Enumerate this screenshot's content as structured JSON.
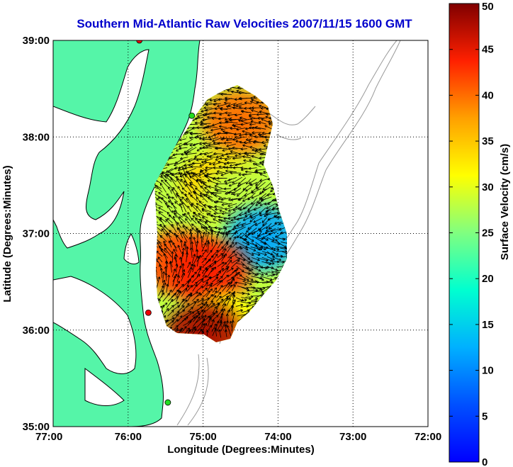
{
  "chart_data": {
    "type": "heatmap",
    "title": "Southern Mid-Atlantic Raw Velocities 2007/11/15 1600 GMT",
    "xlabel": "Longitude (Degrees:Minutes)",
    "ylabel": "Latitude (Degrees:Minutes)",
    "colorbar_label": "Surface Velocity (cm/s)",
    "xlim": [
      -77,
      -72
    ],
    "ylim": [
      35,
      39
    ],
    "x_ticks": [
      {
        "value": -77,
        "label": "77:00"
      },
      {
        "value": -76,
        "label": "76:00"
      },
      {
        "value": -75,
        "label": "75:00"
      },
      {
        "value": -74,
        "label": "74:00"
      },
      {
        "value": -73,
        "label": "73:00"
      },
      {
        "value": -72,
        "label": "72:00"
      }
    ],
    "y_ticks": [
      {
        "value": 35,
        "label": "35:00"
      },
      {
        "value": 36,
        "label": "36:00"
      },
      {
        "value": 37,
        "label": "37:00"
      },
      {
        "value": 38,
        "label": "38:00"
      },
      {
        "value": 39,
        "label": "39:00"
      }
    ],
    "colorbar_range": [
      0,
      50
    ],
    "colorbar_ticks": [
      "0",
      "5",
      "10",
      "15",
      "20",
      "25",
      "30",
      "35",
      "40",
      "45",
      "50"
    ],
    "grid": "dotted",
    "colors": {
      "land": "#55f5a8",
      "coast": "#000000",
      "bathymetry": "#999999",
      "station_red": "#ee0000",
      "station_green": "#22dd22",
      "arrow": "#000000"
    },
    "stations": [
      {
        "lon": -75.85,
        "lat": 39.0,
        "color": "red"
      },
      {
        "lon": -75.15,
        "lat": 38.22,
        "color": "green"
      },
      {
        "lon": -75.73,
        "lat": 36.18,
        "color": "red"
      },
      {
        "lon": -75.47,
        "lat": 35.25,
        "color": "green"
      }
    ],
    "regions": [
      {
        "lon": -74.5,
        "lat": 38.15,
        "speed": 40
      },
      {
        "lon": -74.8,
        "lat": 37.5,
        "speed": 34
      },
      {
        "lon": -74.5,
        "lat": 37.35,
        "speed": 28
      },
      {
        "lon": -74.2,
        "lat": 36.95,
        "speed": 12
      },
      {
        "lon": -75.3,
        "lat": 36.7,
        "speed": 42
      },
      {
        "lon": -74.9,
        "lat": 36.6,
        "speed": 44
      },
      {
        "lon": -74.7,
        "lat": 36.05,
        "speed": 32
      },
      {
        "lon": -75.0,
        "lat": 35.95,
        "speed": 48
      }
    ]
  }
}
